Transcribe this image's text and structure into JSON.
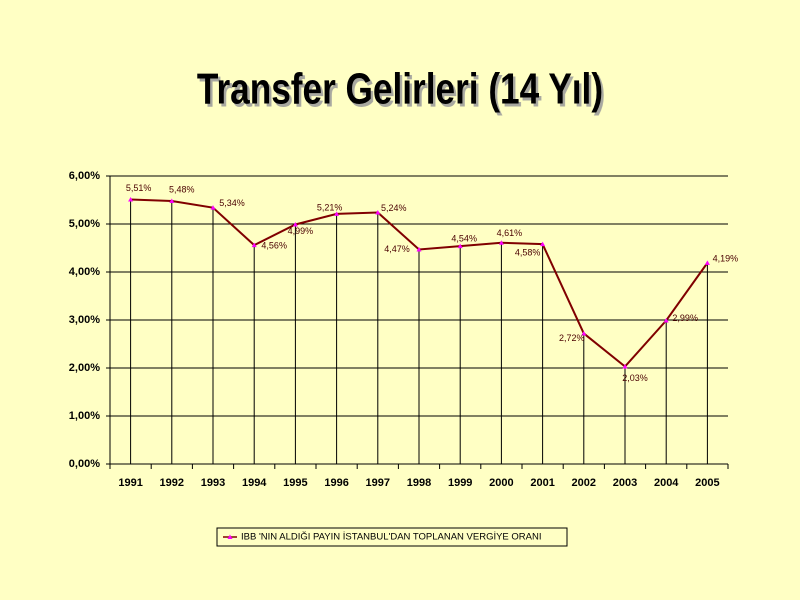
{
  "chart_data": {
    "type": "line",
    "title": "Transfer Gelirleri (14 Yıl)",
    "categories": [
      "1991",
      "1992",
      "1993",
      "1994",
      "1995",
      "1996",
      "1997",
      "1998",
      "1999",
      "2000",
      "2001",
      "2002",
      "2003",
      "2004",
      "2005"
    ],
    "series": [
      {
        "name": "IBB 'NIN ALDIĞI PAYIN İSTANBUL'DAN TOPLANAN VERGİYE ORANI",
        "color": "#800000",
        "marker_color": "#ff00ff",
        "values": [
          5.51,
          5.48,
          5.34,
          4.56,
          4.99,
          5.21,
          5.24,
          4.47,
          4.54,
          4.61,
          4.58,
          2.72,
          2.03,
          2.99,
          4.19
        ],
        "value_labels": [
          "5,51%",
          "5,48%",
          "5,34%",
          "4,56%",
          "4,99%",
          "5,21%",
          "5,24%",
          "4,47%",
          "4,54%",
          "4,61%",
          "4,58%",
          "2,72%",
          "2,03%",
          "2,99%",
          "4,19%"
        ]
      }
    ],
    "ylim": [
      0,
      6
    ],
    "yticks": [
      {
        "value": 0,
        "label": "0,00%"
      },
      {
        "value": 1,
        "label": "1,00%"
      },
      {
        "value": 2,
        "label": "2,00%"
      },
      {
        "value": 3,
        "label": "3,00%"
      },
      {
        "value": 4,
        "label": "4,00%"
      },
      {
        "value": 5,
        "label": "5,00%"
      },
      {
        "value": 6,
        "label": "6,00%"
      }
    ],
    "grid": true,
    "drop_lines": true,
    "legend": "bottom"
  }
}
